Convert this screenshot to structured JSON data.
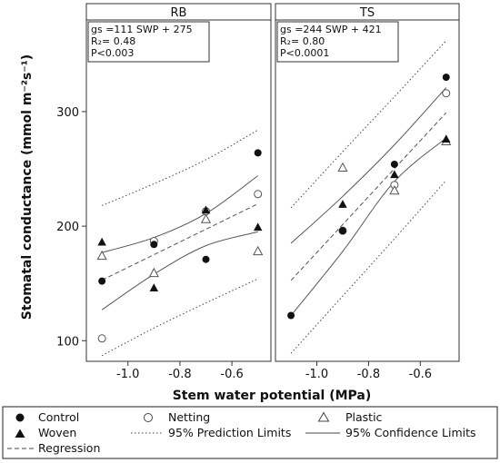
{
  "chart_data": {
    "type": "scatter",
    "ylabel": "Stomatal conductance (mmol m⁻²s⁻¹)",
    "xlabel": "Stem water potential (MPa)",
    "xlim": [
      -1.16,
      -0.45
    ],
    "ylim": [
      82,
      380
    ],
    "xticks": [
      -1.0,
      -0.8,
      -0.6
    ],
    "xtick_labels": [
      "-1.0",
      "-0.8",
      "-0.6"
    ],
    "yticks": [
      100,
      200,
      300
    ],
    "ytick_labels": [
      "100",
      "200",
      "300"
    ],
    "legend_placement": "bottom",
    "legend": {
      "control": "Control",
      "netting": "Netting",
      "plastic": "Plastic",
      "woven": "Woven",
      "prediction": "95% Prediction Limits",
      "confidence": "95% Confidence Limits",
      "regression": "Regression"
    },
    "panels": [
      {
        "strip": "RB",
        "stats": [
          "gs =111 SWP + 275",
          "R₂= 0.48",
          "P<0.003"
        ],
        "regression": {
          "slope": 111,
          "intercept": 275
        },
        "series": {
          "control": [
            [
              -1.1,
              152
            ],
            [
              -0.9,
              184
            ],
            [
              -0.7,
              171
            ],
            [
              -0.5,
              264
            ]
          ],
          "netting": [
            [
              -1.1,
              102
            ],
            [
              -0.9,
              187
            ],
            [
              -0.7,
              213
            ],
            [
              -0.5,
              228
            ]
          ],
          "plastic": [
            [
              -1.1,
              174
            ],
            [
              -0.9,
              159
            ],
            [
              -0.7,
              206
            ],
            [
              -0.5,
              178
            ]
          ],
          "woven": [
            [
              -1.1,
              186
            ],
            [
              -0.9,
              146
            ],
            [
              -0.7,
              214
            ],
            [
              -0.5,
              199
            ]
          ]
        },
        "confidence_upper": [
          [
            -1.1,
            177
          ],
          [
            -0.9,
            190
          ],
          [
            -0.7,
            211
          ],
          [
            -0.5,
            244
          ]
        ],
        "confidence_lower": [
          [
            -1.1,
            127
          ],
          [
            -0.9,
            158
          ],
          [
            -0.7,
            183
          ],
          [
            -0.5,
            195
          ]
        ],
        "prediction_upper": [
          [
            -1.1,
            218
          ],
          [
            -0.9,
            237
          ],
          [
            -0.7,
            258
          ],
          [
            -0.5,
            284
          ]
        ],
        "prediction_lower": [
          [
            -1.1,
            87
          ],
          [
            -0.9,
            111
          ],
          [
            -0.7,
            133
          ],
          [
            -0.5,
            154
          ]
        ]
      },
      {
        "strip": "TS",
        "stats": [
          "gs =244 SWP + 421",
          "R₂= 0.80",
          "P<0.0001"
        ],
        "regression": {
          "slope": 244,
          "intercept": 421
        },
        "series": {
          "control": [
            [
              -1.1,
              122
            ],
            [
              -0.9,
              196
            ],
            [
              -0.7,
              254
            ],
            [
              -0.5,
              330
            ]
          ],
          "netting": [
            [
              -0.9,
              196
            ],
            [
              -0.7,
              236
            ],
            [
              -0.5,
              316
            ]
          ],
          "plastic": [
            [
              -0.9,
              251
            ],
            [
              -0.7,
              231
            ],
            [
              -0.5,
              274
            ]
          ],
          "woven": [
            [
              -0.9,
              219
            ],
            [
              -0.7,
              245
            ],
            [
              -0.5,
              276
            ]
          ]
        },
        "confidence_upper": [
          [
            -1.1,
            185
          ],
          [
            -0.9,
            226
          ],
          [
            -0.7,
            271
          ],
          [
            -0.5,
            321
          ]
        ],
        "confidence_lower": [
          [
            -1.1,
            122
          ],
          [
            -0.9,
            178
          ],
          [
            -0.7,
            239
          ],
          [
            -0.5,
            277
          ]
        ],
        "prediction_upper": [
          [
            -1.1,
            216
          ],
          [
            -0.9,
            265
          ],
          [
            -0.7,
            313
          ],
          [
            -0.5,
            362
          ]
        ],
        "prediction_lower": [
          [
            -1.1,
            89
          ],
          [
            -0.9,
            139
          ],
          [
            -0.7,
            189
          ],
          [
            -0.5,
            240
          ]
        ]
      }
    ]
  }
}
